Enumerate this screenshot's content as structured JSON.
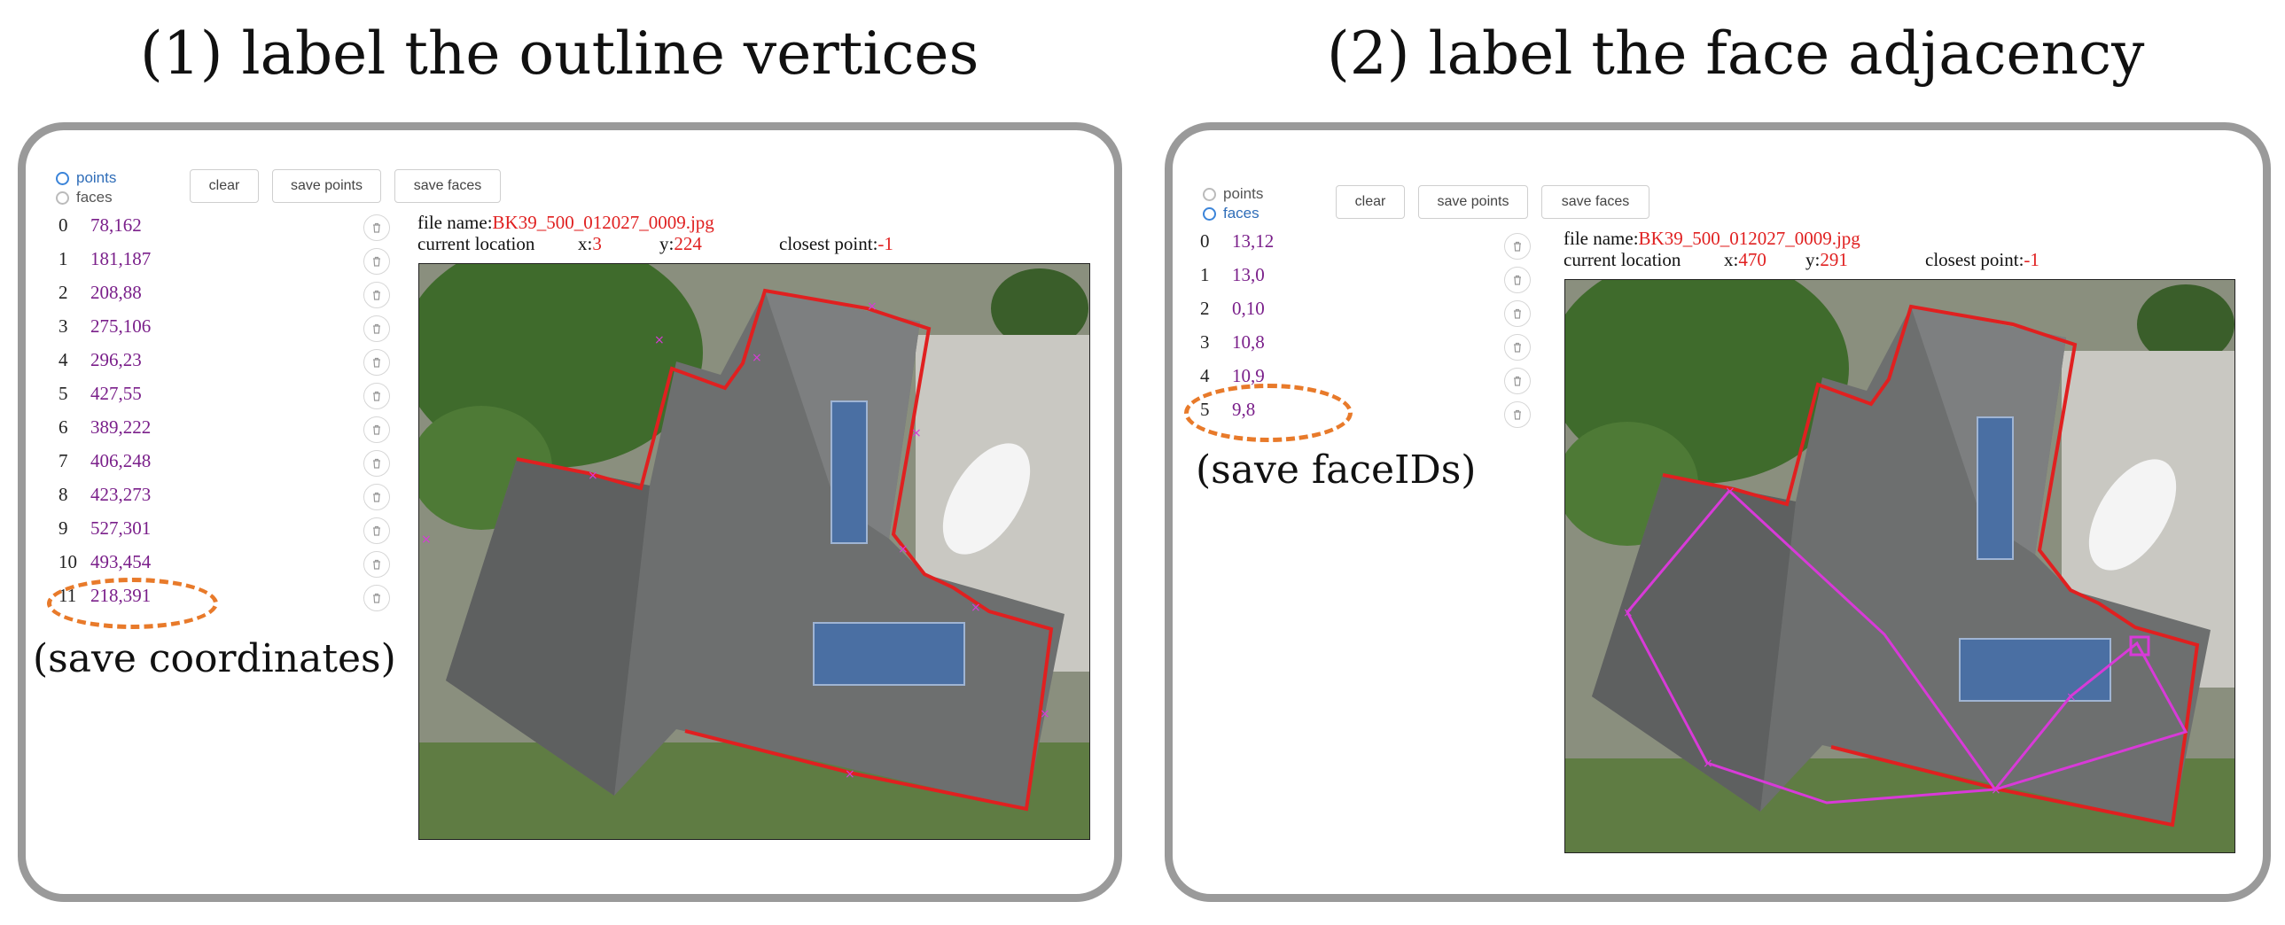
{
  "headings": {
    "left": "(1) label the outline vertices",
    "right": "(2) label the face adjacency"
  },
  "left_panel": {
    "radios": [
      {
        "label": "points",
        "selected": true
      },
      {
        "label": "faces",
        "selected": false
      }
    ],
    "buttons": {
      "clear": "clear",
      "save_points": "save points",
      "save_faces": "save faces"
    },
    "points": [
      {
        "index": "0",
        "value": "78,162"
      },
      {
        "index": "1",
        "value": "181,187"
      },
      {
        "index": "2",
        "value": "208,88"
      },
      {
        "index": "3",
        "value": "275,106"
      },
      {
        "index": "4",
        "value": "296,23"
      },
      {
        "index": "5",
        "value": "427,55"
      },
      {
        "index": "6",
        "value": "389,222"
      },
      {
        "index": "7",
        "value": "406,248"
      },
      {
        "index": "8",
        "value": "423,273"
      },
      {
        "index": "9",
        "value": "527,301"
      },
      {
        "index": "10",
        "value": "493,454"
      },
      {
        "index": "11",
        "value": "218,391"
      }
    ],
    "file_label": "file name:",
    "file_name": "BK39_500_012027_0009.jpg",
    "location_label": "current location",
    "x_label": "x:",
    "x_value": "3",
    "y_label": "y:",
    "y_value": "224",
    "closest_label": "closest point:",
    "closest_value": "-1",
    "annotation": "(save coordinates)"
  },
  "right_panel": {
    "radios": [
      {
        "label": "points",
        "selected": false
      },
      {
        "label": "faces",
        "selected": true
      }
    ],
    "buttons": {
      "clear": "clear",
      "save_points": "save points",
      "save_faces": "save faces"
    },
    "faces": [
      {
        "index": "0",
        "value": "13,12"
      },
      {
        "index": "1",
        "value": "13,0"
      },
      {
        "index": "2",
        "value": "0,10"
      },
      {
        "index": "3",
        "value": "10,8"
      },
      {
        "index": "4",
        "value": "10,9"
      },
      {
        "index": "5",
        "value": "9,8"
      }
    ],
    "file_label": "file name:",
    "file_name": "BK39_500_012027_0009.jpg",
    "location_label": "current location",
    "x_label": "x:",
    "x_value": "470",
    "y_label": "y:",
    "y_value": "291",
    "closest_label": "closest point:",
    "closest_value": "-1",
    "annotation": "(save faceIDs)"
  },
  "colors": {
    "accent_orange": "#e87a2a",
    "outline_red": "#e02020",
    "adjacency_magenta": "#d83ad8",
    "value_purple": "#7a1f8a",
    "panel_border": "#9a9a9a"
  },
  "icons": {
    "delete": "trash-icon",
    "radio": "radio-icon"
  }
}
